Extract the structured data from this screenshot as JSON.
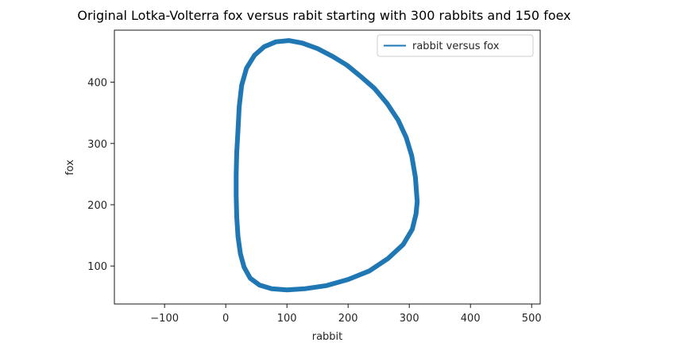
{
  "chart_data": {
    "type": "line",
    "title": "Original Lotka-Volterra fox versus rabit starting with 300 rabbits and 150 foex",
    "xlabel": "rabbit",
    "ylabel": "fox",
    "xlim": [
      -182,
      514
    ],
    "ylim": [
      38,
      485
    ],
    "xticks": [
      -100,
      0,
      100,
      200,
      300,
      400,
      500
    ],
    "xtick_labels": [
      "−100",
      "0",
      "100",
      "200",
      "300",
      "400",
      "500"
    ],
    "yticks": [
      100,
      200,
      300,
      400
    ],
    "ytick_labels": [
      "100",
      "200",
      "300",
      "400"
    ],
    "grid": false,
    "legend": {
      "position": "upper-right"
    },
    "series": [
      {
        "name": "rabbit versus fox",
        "color": "#1f77b4",
        "x": [
          313,
          310,
          304,
          295,
          282,
          264,
          243,
          220,
          198,
          175,
          150,
          125,
          103,
          82,
          63,
          47,
          34,
          26,
          22,
          20,
          18,
          17,
          17,
          18,
          20,
          24,
          30,
          40,
          55,
          75,
          100,
          130,
          165,
          200,
          235,
          265,
          290,
          305,
          311,
          313
        ],
        "y": [
          205,
          245,
          280,
          310,
          338,
          365,
          390,
          410,
          428,
          442,
          455,
          464,
          468,
          466,
          458,
          444,
          423,
          395,
          360,
          322,
          285,
          250,
          215,
          180,
          148,
          120,
          98,
          80,
          69,
          63,
          61,
          63,
          68,
          78,
          92,
          112,
          135,
          160,
          185,
          205
        ]
      }
    ]
  }
}
